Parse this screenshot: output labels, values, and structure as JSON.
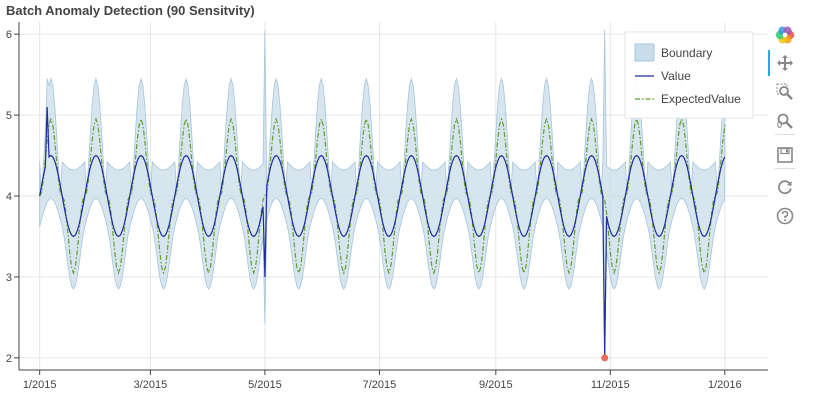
{
  "title": "Batch Anomaly Detection (90 Sensitvity)",
  "colors": {
    "value": "#1f2e9c",
    "expected": "#5f9e2f",
    "boundary_fill": "#c9dcea",
    "boundary_stroke": "#a6c4dc",
    "anomaly": "#f06a5e",
    "grid": "#e5e5e5",
    "axis": "#444444",
    "toolbar_accent": "#26aae1"
  },
  "toolbar": {
    "tools": [
      {
        "icon": "bokeh-logo-icon",
        "interactable": false
      },
      {
        "icon": "pan-icon",
        "interactable": true,
        "active": true
      },
      {
        "icon": "box-zoom-icon",
        "interactable": true
      },
      {
        "icon": "wheel-zoom-icon",
        "interactable": true
      },
      {
        "icon": "save-icon",
        "interactable": true
      },
      {
        "icon": "reset-icon",
        "interactable": true
      },
      {
        "icon": "help-icon",
        "interactable": true
      }
    ]
  },
  "chart_data": {
    "type": "line",
    "title": "Batch Anomaly Detection (90 Sensitvity)",
    "x_axis": {
      "type": "datetime",
      "range": [
        "2014-12-21",
        "2016-01-24"
      ],
      "ticks": [
        "2015-01-01",
        "2015-03-01",
        "2015-05-01",
        "2015-07-01",
        "2015-09-01",
        "2015-11-01",
        "2016-01-01"
      ],
      "tick_labels": [
        "1/2015",
        "3/2015",
        "5/2015",
        "7/2015",
        "9/2015",
        "11/2015",
        "1/2016"
      ]
    },
    "y_axis": {
      "range": [
        1.85,
        6.15
      ],
      "ticks": [
        2,
        3,
        4,
        5,
        6
      ],
      "tick_labels": [
        "2",
        "3",
        "4",
        "5",
        "6"
      ]
    },
    "grid": true,
    "legend": {
      "position": "top-right",
      "entries": [
        "Boundary",
        "Value",
        "ExpectedValue"
      ]
    },
    "series_generation": {
      "start": "2015-01-01",
      "end": "2016-01-01",
      "sample_days": 1,
      "value": {
        "baseline": 4.0,
        "amplitude": 0.5,
        "period_days": 24,
        "phase_days": 0
      },
      "expected": {
        "baseline": 4.0,
        "amplitude": 0.95,
        "period_days": 24,
        "phase_days": 0,
        "peak_sharpness": 2.2
      },
      "boundary": {
        "upper_max": 5.45,
        "upper_min": 3.8,
        "lower_min": 2.85,
        "lower_max": 3.6,
        "flat_upper": 4.42,
        "flat_lower": 3.62
      }
    },
    "spikes": [
      {
        "date": "2015-01-05",
        "value": 5.1,
        "boundary_high": 5.45
      },
      {
        "date": "2015-05-01",
        "value": 3.0,
        "boundary_low": 2.42,
        "boundary_high": 6.05
      },
      {
        "date": "2015-10-29",
        "value": 2.0,
        "boundary_low": 2.0,
        "boundary_high": 6.05
      }
    ],
    "anomalies": [
      {
        "date": "2015-10-29",
        "value": 2.0
      }
    ]
  }
}
